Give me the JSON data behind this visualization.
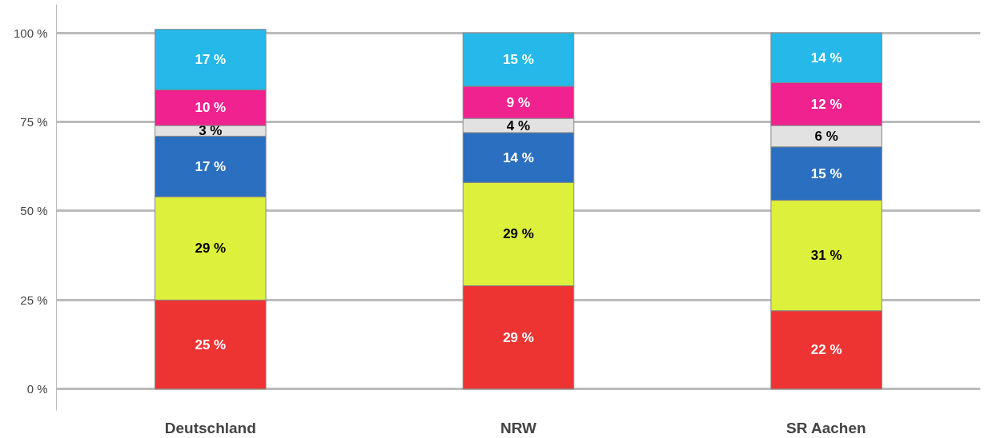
{
  "chart_data": {
    "type": "bar",
    "stacked": true,
    "categories": [
      "Deutschland",
      "NRW",
      "SR Aachen"
    ],
    "series": [
      {
        "color": "#ee3333",
        "values": [
          25,
          29,
          22
        ],
        "value_labels": [
          "25 %",
          "29 %",
          "22 %"
        ]
      },
      {
        "color": "#dcf03c",
        "values": [
          29,
          29,
          31
        ],
        "value_labels": [
          "29 %",
          "29 %",
          "31 %"
        ]
      },
      {
        "color": "#2a6fc0",
        "values": [
          17,
          14,
          15
        ],
        "value_labels": [
          "17 %",
          "14 %",
          "15 %"
        ]
      },
      {
        "color": "#e2e2e2",
        "values": [
          3,
          4,
          6
        ],
        "value_labels": [
          "3 %",
          "4 %",
          "6 %"
        ]
      },
      {
        "color": "#f0228f",
        "values": [
          10,
          9,
          12
        ],
        "value_labels": [
          "10 %",
          "9 %",
          "12 %"
        ]
      },
      {
        "color": "#25b8e8",
        "values": [
          17,
          15,
          14
        ],
        "value_labels": [
          "17 %",
          "15 %",
          "14 %"
        ]
      }
    ],
    "ylim": [
      -6,
      108
    ],
    "yticks": [
      {
        "value": 0,
        "label": "0 %"
      },
      {
        "value": 25,
        "label": "25 %"
      },
      {
        "value": 50,
        "label": "50 %"
      },
      {
        "value": 75,
        "label": "75 %"
      },
      {
        "value": 100,
        "label": "100 %"
      }
    ],
    "grid": "y"
  }
}
